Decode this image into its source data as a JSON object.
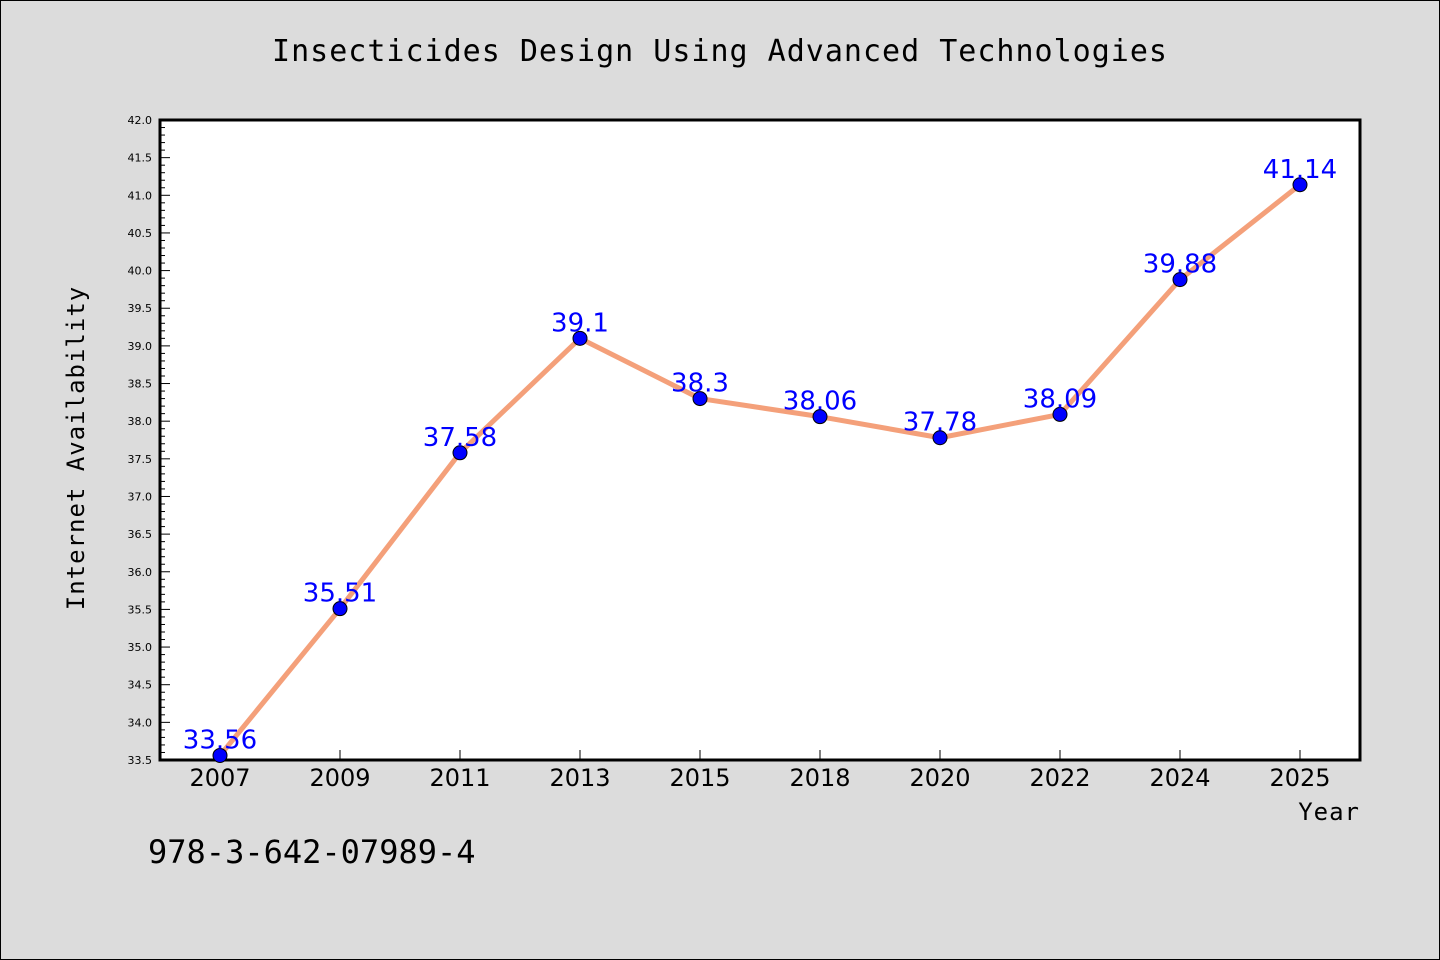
{
  "chart_data": {
    "type": "line",
    "title": "Insecticides Design Using Advanced Technologies",
    "xlabel": "Year",
    "ylabel": "Internet Availability",
    "categories": [
      "2007",
      "2009",
      "2011",
      "2013",
      "2015",
      "2018",
      "2020",
      "2022",
      "2024",
      "2025"
    ],
    "series": [
      {
        "values": [
          33.56,
          35.51,
          37.58,
          39.1,
          38.3,
          38.06,
          37.78,
          38.09,
          39.88,
          41.14
        ]
      }
    ],
    "data_labels": [
      "33.56",
      "35.51",
      "37.58",
      "39.1",
      "38.3",
      "38.06",
      "37.78",
      "38.09",
      "39.88",
      "41.14"
    ],
    "ylim": [
      33.5,
      42.0
    ],
    "yticks": [
      "33.5",
      "34.0",
      "34.5",
      "35.0",
      "35.5",
      "36.0",
      "36.5",
      "37.0",
      "37.5",
      "38.0",
      "38.5",
      "39.0",
      "39.5",
      "40.0",
      "40.5",
      "41.0",
      "41.5",
      "42.0"
    ],
    "grid": false,
    "legend": "none",
    "colors": {
      "line": "#f4a07a",
      "marker": "#0000ff",
      "label": "#0000ff",
      "background": "#dcdcdc",
      "plot_bg": "#ffffff"
    }
  },
  "footer": {
    "isbn": "978-3-642-07989-4"
  }
}
